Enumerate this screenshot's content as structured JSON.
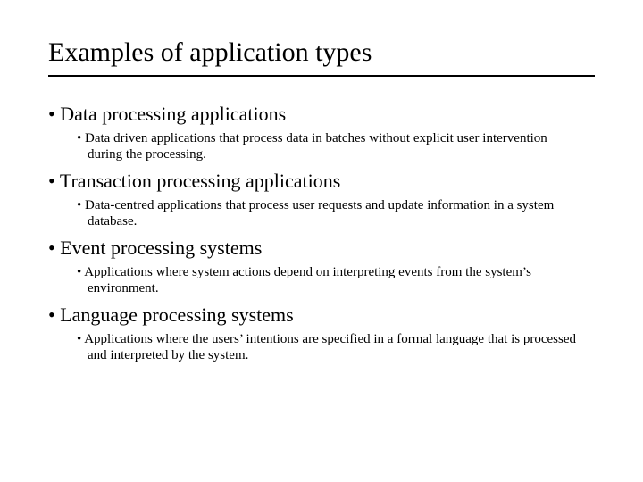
{
  "title": "Examples of application types",
  "colors": {
    "text": "#000000",
    "background": "#ffffff",
    "rule": "#000000"
  },
  "typography": {
    "title_fontsize": 30,
    "top_bullet_fontsize": 22,
    "sub_bullet_fontsize": 15,
    "font_family": "Times New Roman"
  },
  "items": [
    {
      "label": "Data processing applications",
      "sub": "Data driven applications that process data in batches without explicit user intervention during the processing."
    },
    {
      "label": "Transaction processing applications",
      "sub": "Data-centred applications that process user requests and update information in a system database."
    },
    {
      "label": "Event processing systems",
      "sub": "Applications where system actions depend on interpreting events from the system’s environment."
    },
    {
      "label": "Language processing systems",
      "sub": "Applications where the users’ intentions are specified in a formal language that is processed and interpreted by the system."
    }
  ]
}
